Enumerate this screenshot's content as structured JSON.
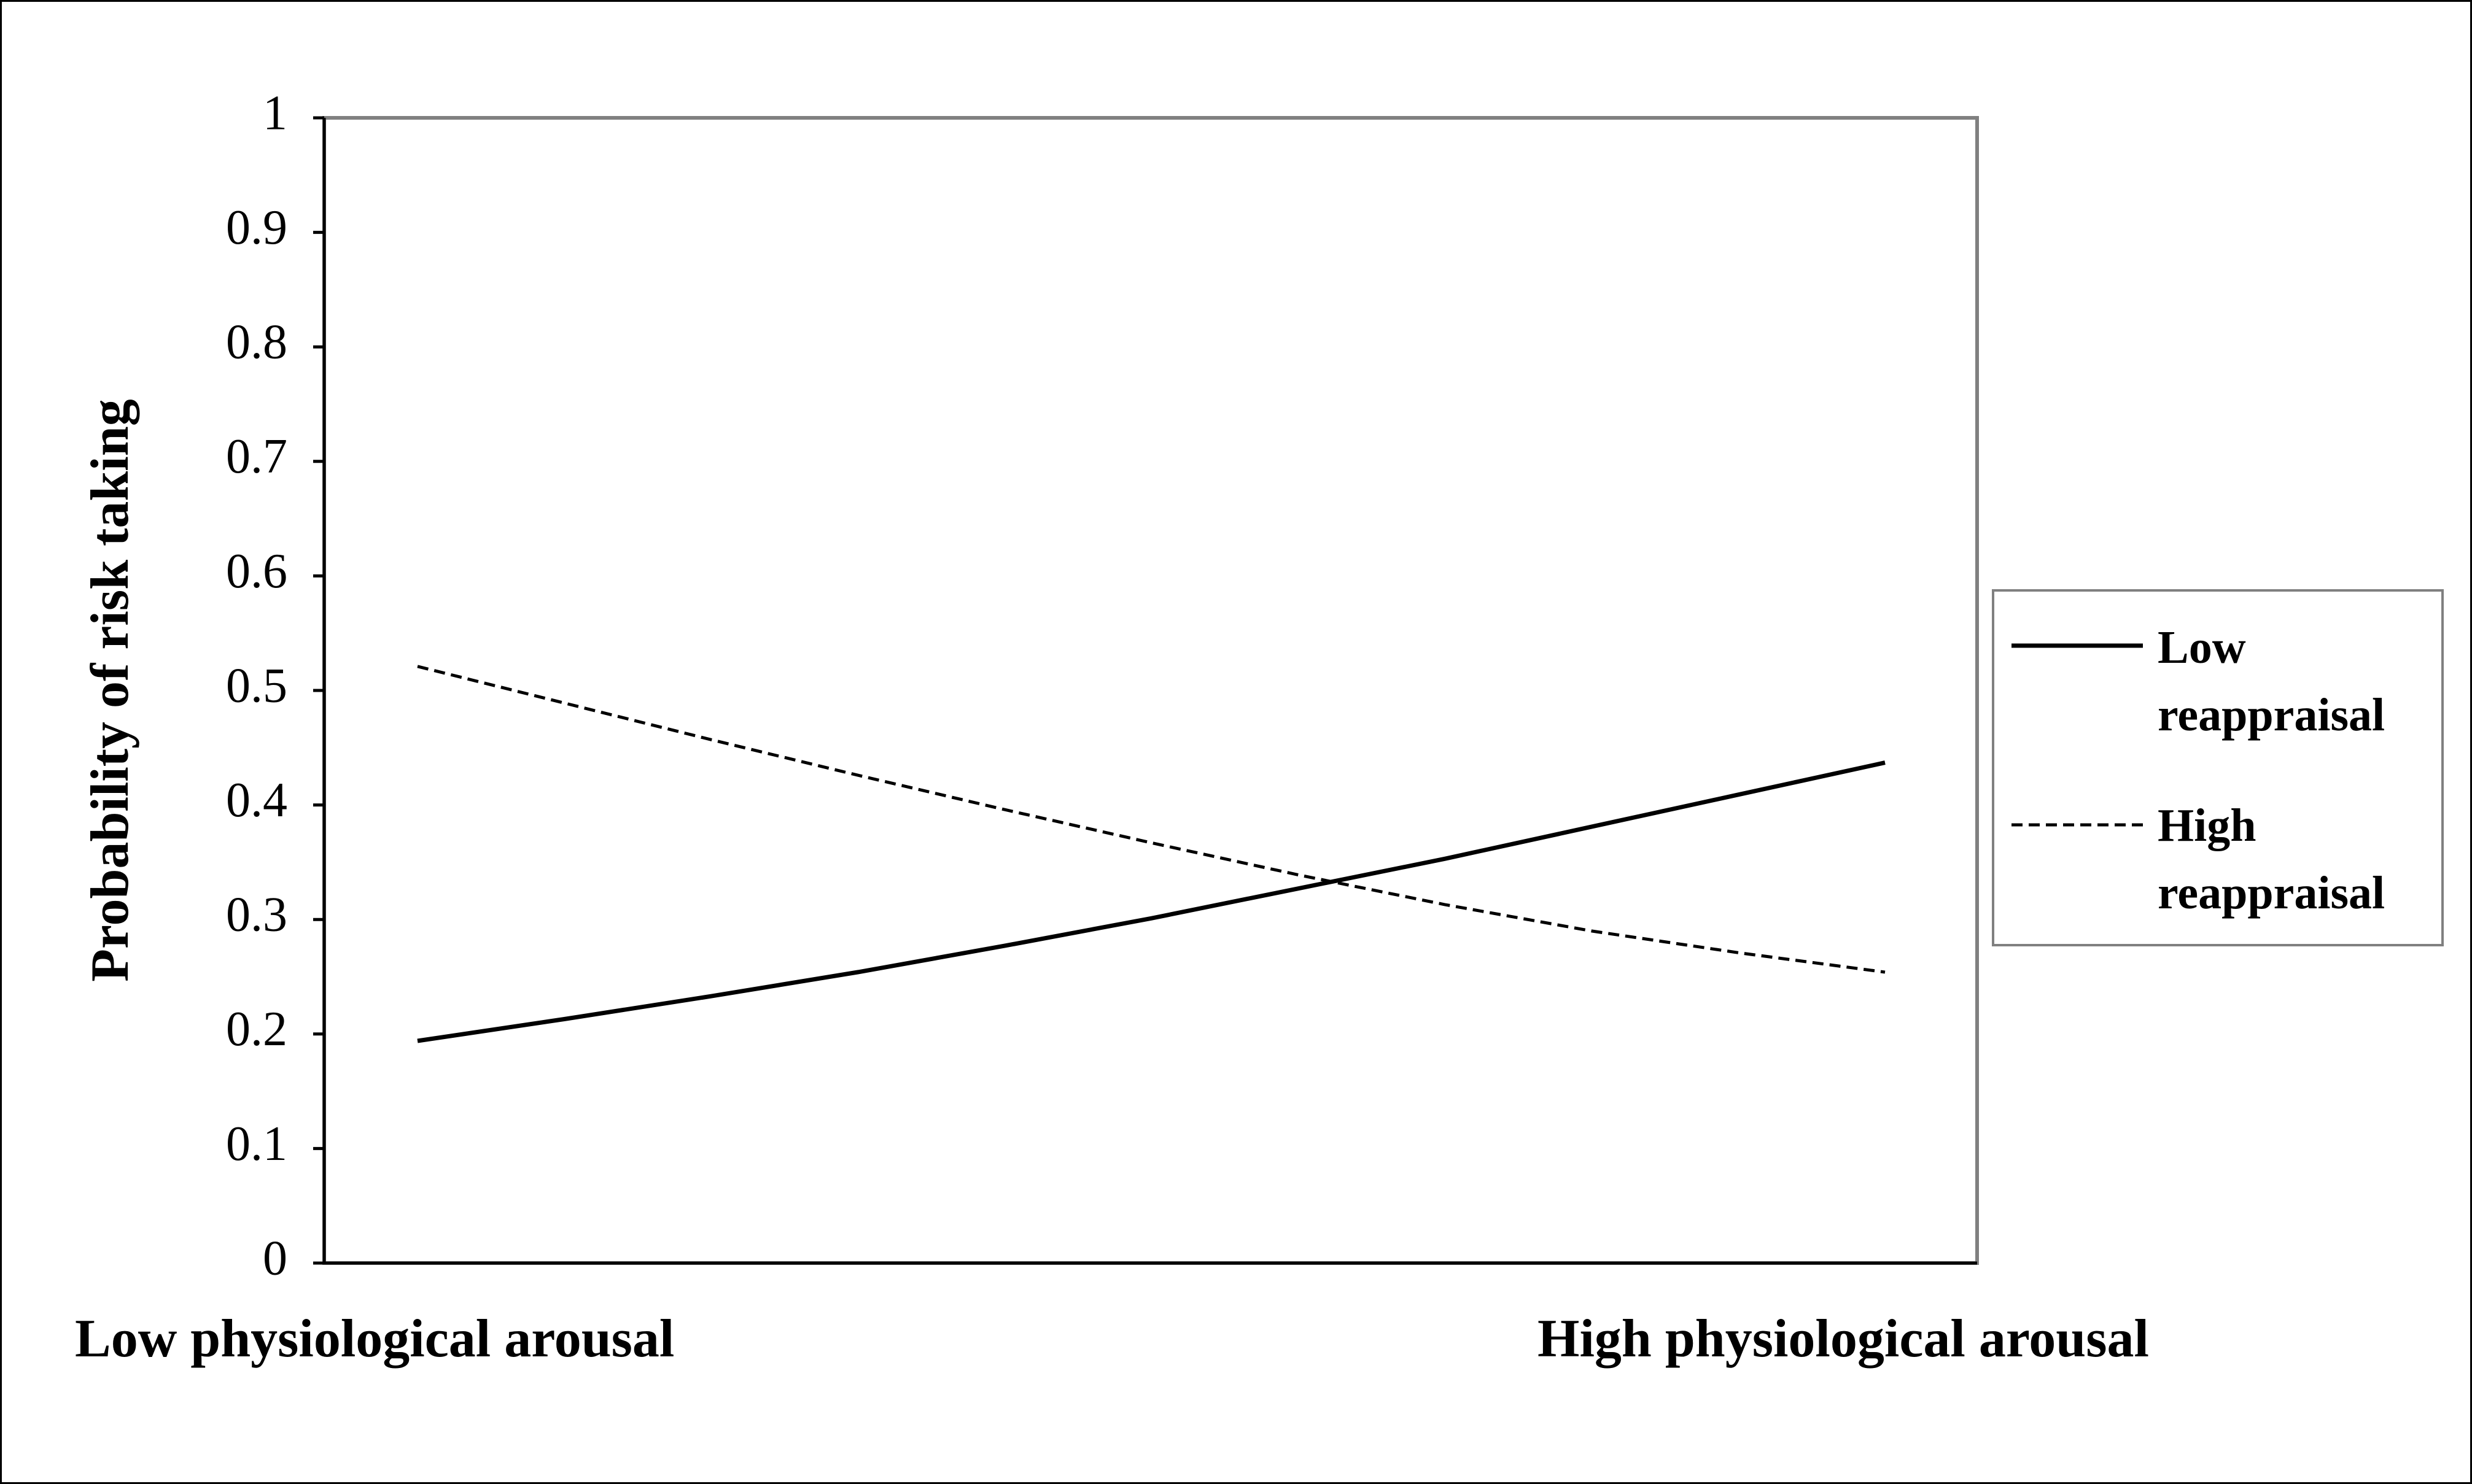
{
  "chart_data": {
    "type": "line",
    "title": "",
    "xlabel": "",
    "ylabel": "Probability of risk taking",
    "categories": [
      "Low physiological arousal",
      "High physiological arousal"
    ],
    "ylim": [
      0,
      1
    ],
    "yticks": [
      "0",
      "0.1",
      "0.2",
      "0.3",
      "0.4",
      "0.5",
      "0.6",
      "0.7",
      "0.8",
      "0.9",
      "1"
    ],
    "grid": false,
    "legend_position": "right",
    "series": [
      {
        "name_lines": [
          "Low",
          "reappraisal"
        ],
        "style": "solid",
        "color": "#000000",
        "x": [
          0,
          0.1,
          0.2,
          0.3,
          0.4,
          0.5,
          0.6,
          0.7,
          0.8,
          0.9,
          1
        ],
        "values": [
          0.194,
          0.213,
          0.233,
          0.254,
          0.277,
          0.301,
          0.327,
          0.353,
          0.381,
          0.409,
          0.437
        ]
      },
      {
        "name_lines": [
          "High",
          "reappraisal"
        ],
        "style": "dashed",
        "color": "#000000",
        "x": [
          0,
          0.1,
          0.2,
          0.3,
          0.4,
          0.5,
          0.6,
          0.7,
          0.8,
          0.9,
          1
        ],
        "values": [
          0.521,
          0.489,
          0.457,
          0.426,
          0.396,
          0.367,
          0.339,
          0.313,
          0.29,
          0.271,
          0.254
        ]
      }
    ]
  }
}
